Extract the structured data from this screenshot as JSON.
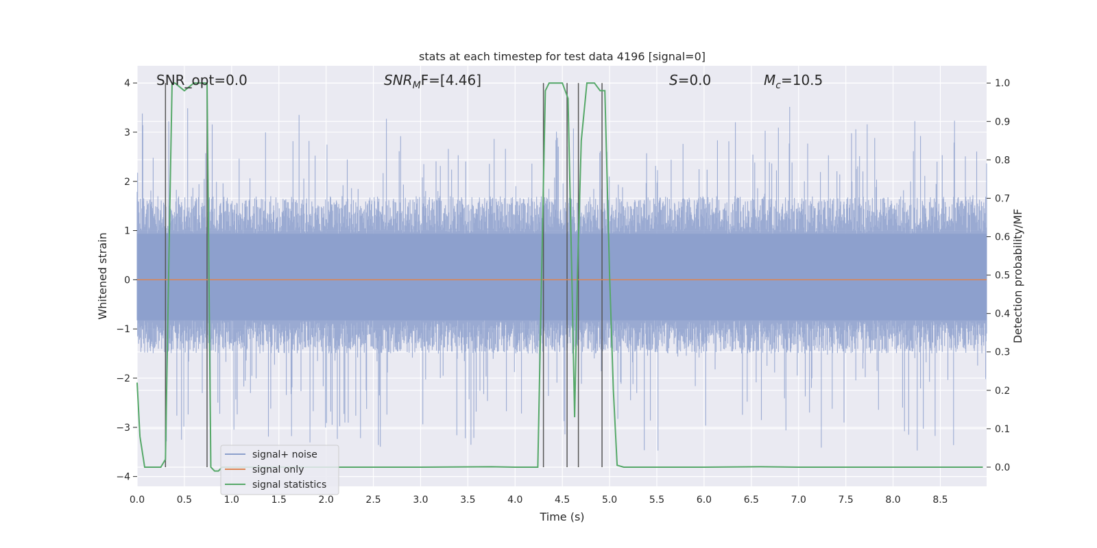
{
  "chart_data": {
    "type": "line",
    "title": "stats at each timestep for test data 4196 [signal=0]",
    "xlabel": "Time (s)",
    "ylabel": "Whitened strain",
    "y2label": "Detection probability/MF",
    "xlim": [
      0.0,
      8.99
    ],
    "ylim": [
      -4.2,
      4.35
    ],
    "y2lim": [
      -0.05,
      1.045
    ],
    "xticks": [
      0.0,
      0.5,
      1.0,
      1.5,
      2.0,
      2.5,
      3.0,
      3.5,
      4.0,
      4.5,
      5.0,
      5.5,
      6.0,
      6.5,
      7.0,
      7.5,
      8.0,
      8.5
    ],
    "xtick_labels": [
      "0.0",
      "0.5",
      "1.0",
      "1.5",
      "2.0",
      "2.5",
      "3.0",
      "3.5",
      "4.0",
      "4.5",
      "5.0",
      "5.5",
      "6.0",
      "6.5",
      "7.0",
      "7.5",
      "8.0",
      "8.5"
    ],
    "yticks": [
      -4,
      -3,
      -2,
      -1,
      0,
      1,
      2,
      3,
      4
    ],
    "ytick_labels": [
      "−4",
      "−3",
      "−2",
      "−1",
      "0",
      "1",
      "2",
      "3",
      "4"
    ],
    "y2ticks": [
      0.0,
      0.1,
      0.2,
      0.3,
      0.4,
      0.5,
      0.6,
      0.7,
      0.8,
      0.9,
      1.0
    ],
    "y2tick_labels": [
      "0.0",
      "0.1",
      "0.2",
      "0.3",
      "0.4",
      "0.5",
      "0.6",
      "0.7",
      "0.8",
      "0.9",
      "1.0"
    ],
    "grid": true,
    "legend_position": "bottom-left",
    "annotations": {
      "snr_opt": "SNR_opt=0.0",
      "snr_mf_main": "SNR",
      "snr_mf_sub": "M",
      "snr_mf_tail": "F=[4.46]",
      "s_main": "S",
      "s_tail": "=0.0",
      "mc_main": "M",
      "mc_sub": "c",
      "mc_tail": "=10.5"
    },
    "series": [
      {
        "name": "signal+ noise",
        "axis": "left",
        "color": "#8c9fcc",
        "noise_band_approx": [
          -1.5,
          1.7
        ],
        "peak_range_approx": [
          -3.6,
          3.6
        ]
      },
      {
        "name": "signal only",
        "axis": "left",
        "color": "#dd8452",
        "values_approx": "0 throughout"
      },
      {
        "name": "signal statistics",
        "axis": "right",
        "color": "#55a868",
        "x": [
          0.0,
          0.03,
          0.08,
          0.15,
          0.25,
          0.3,
          0.34,
          0.37,
          0.4,
          0.45,
          0.5,
          0.55,
          0.6,
          0.65,
          0.7,
          0.74,
          0.78,
          0.82,
          0.86,
          0.9,
          1.0,
          2.0,
          3.0,
          3.75,
          4.0,
          4.24,
          4.28,
          4.32,
          4.36,
          4.4,
          4.45,
          4.5,
          4.56,
          4.6,
          4.63,
          4.66,
          4.7,
          4.76,
          4.84,
          4.9,
          4.95,
          5.0,
          5.04,
          5.08,
          5.15,
          6.0,
          6.6,
          7.0,
          8.0,
          8.95
        ],
        "values": [
          0.22,
          0.08,
          0.0,
          0.0,
          0.0,
          0.02,
          0.6,
          1.0,
          1.0,
          0.99,
          0.98,
          0.99,
          1.0,
          1.0,
          1.0,
          1.0,
          0.0,
          -0.01,
          -0.01,
          0.0,
          0.0,
          0.0,
          0.0,
          0.001,
          0.0,
          0.0,
          0.5,
          0.98,
          1.0,
          1.0,
          1.0,
          1.0,
          0.96,
          0.5,
          0.13,
          0.5,
          0.85,
          1.0,
          1.0,
          0.98,
          0.98,
          0.5,
          0.2,
          0.005,
          0.0,
          0.0,
          0.001,
          0.0,
          0.0,
          0.0
        ]
      }
    ],
    "vertical_markers_x": [
      0.3,
      0.74,
      4.3,
      4.55,
      4.67,
      4.92
    ]
  }
}
